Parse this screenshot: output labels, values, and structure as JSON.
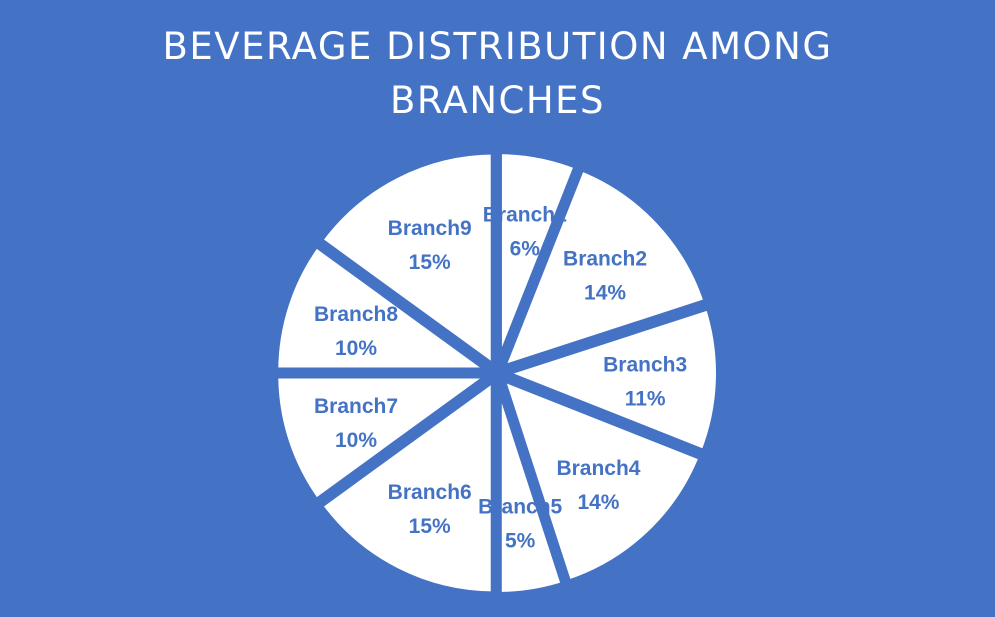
{
  "colors": {
    "background": "#4472C4",
    "slice_fill": "#FFFFFF",
    "label": "#4472C4"
  },
  "chart_data": {
    "type": "pie",
    "title_lines": [
      "BEVERAGE DISTRIBUTION AMONG",
      "BRANCHES"
    ],
    "categories": [
      "Branch1",
      "Branch2",
      "Branch3",
      "Branch4",
      "Branch5",
      "Branch6",
      "Branch7",
      "Branch8",
      "Branch9"
    ],
    "values": [
      6,
      14,
      11,
      14,
      5,
      15,
      10,
      10,
      15
    ],
    "value_labels": [
      "6%",
      "14%",
      "11%",
      "14%",
      "5%",
      "15%",
      "10%",
      "10%",
      "15%"
    ],
    "legend": "none",
    "data_labels": "inside"
  }
}
